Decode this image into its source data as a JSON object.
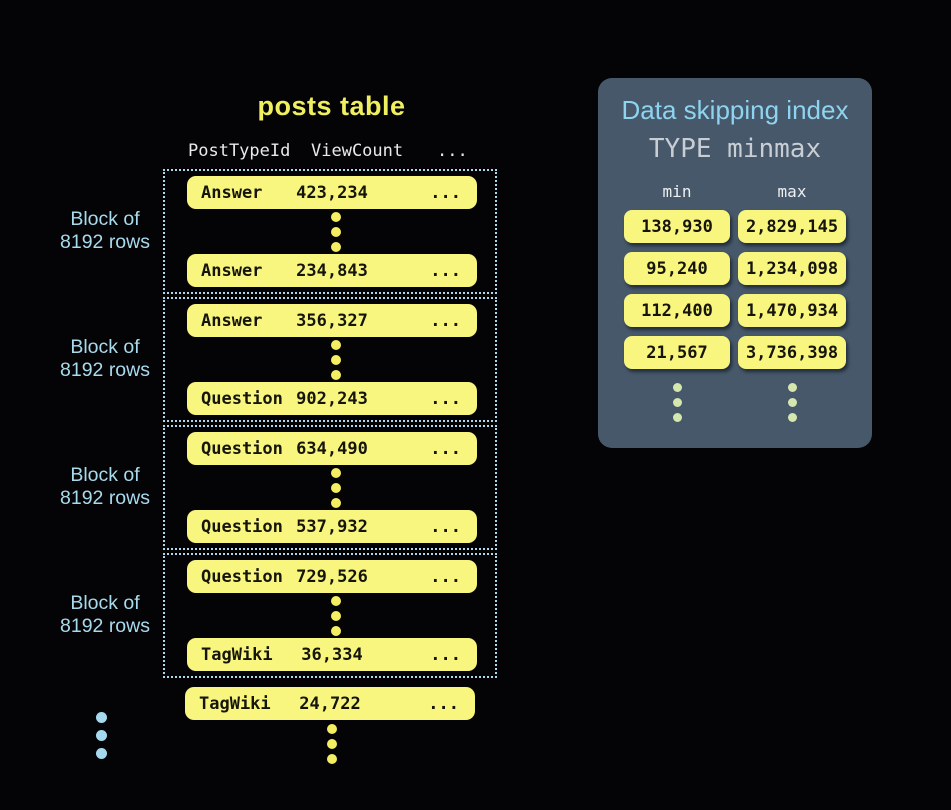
{
  "colors": {
    "background": "#040407",
    "row_yellow": "#f8f67e",
    "title_yellow": "#f0ef60",
    "accent_light_blue": "#a9daec",
    "panel_background": "#46586a",
    "panel_title_blue": "#8ed4f0",
    "panel_subtitle_gray": "#c9ced5",
    "pale_dot_green": "#d5e6ae"
  },
  "posts_table": {
    "title": "posts table",
    "columns": [
      "PostTypeId",
      "ViewCount",
      "..."
    ],
    "block_label": {
      "line1": "Block of",
      "line2": "8192 rows"
    },
    "blocks": [
      {
        "rows": [
          {
            "type": "Answer",
            "views": "423,234",
            "more": "..."
          },
          {
            "type": "Answer",
            "views": "234,843",
            "more": "..."
          }
        ]
      },
      {
        "rows": [
          {
            "type": "Answer",
            "views": "356,327",
            "more": "..."
          },
          {
            "type": "Question",
            "views": "902,243",
            "more": "..."
          }
        ]
      },
      {
        "rows": [
          {
            "type": "Question",
            "views": "634,490",
            "more": "..."
          },
          {
            "type": "Question",
            "views": "537,932",
            "more": "..."
          }
        ]
      },
      {
        "rows": [
          {
            "type": "Question",
            "views": "729,526",
            "more": "..."
          },
          {
            "type": "TagWiki",
            "views": "36,334",
            "more": "..."
          }
        ]
      }
    ],
    "trailing_row": {
      "type": "TagWiki",
      "views": "24,722",
      "more": "..."
    }
  },
  "index_panel": {
    "title": "Data skipping index",
    "subtitle": "TYPE minmax",
    "min_header": "min",
    "max_header": "max",
    "entries": [
      {
        "min": "138,930",
        "max": "2,829,145"
      },
      {
        "min": "95,240",
        "max": "1,234,098"
      },
      {
        "min": "112,400",
        "max": "1,470,934"
      },
      {
        "min": "21,567",
        "max": "3,736,398"
      }
    ]
  }
}
